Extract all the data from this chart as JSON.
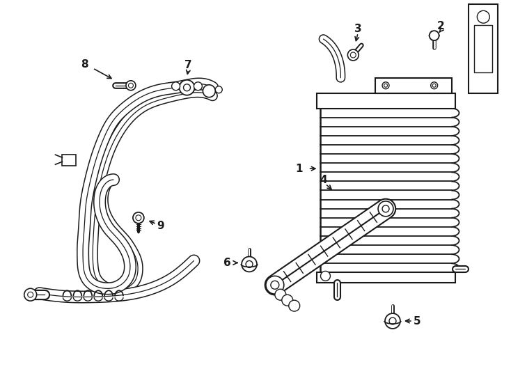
{
  "bg_color": "#ffffff",
  "line_color": "#1a1a1a",
  "lw": 1.3,
  "fig_width": 7.34,
  "fig_height": 5.4,
  "dpi": 100
}
